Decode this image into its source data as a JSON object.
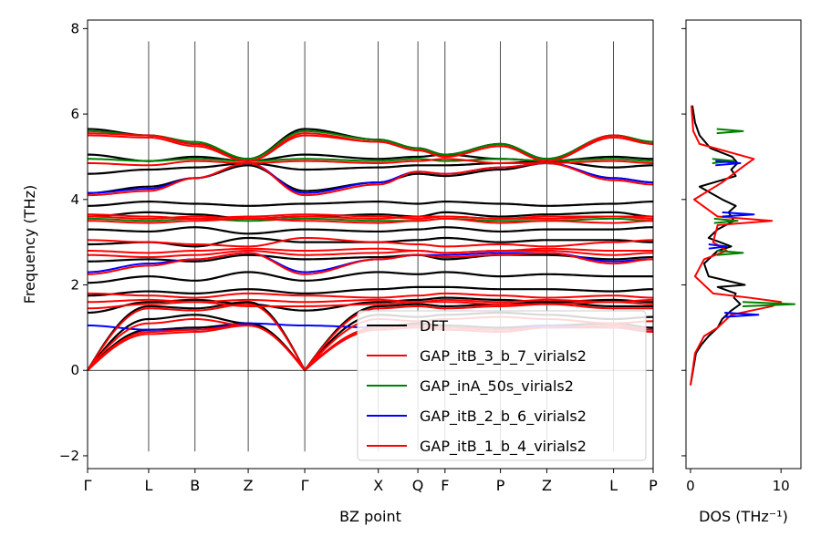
{
  "chart_data": [
    {
      "type": "line",
      "subtype": "phonon-band-structure",
      "title": "",
      "xlabel": "BZ point",
      "ylabel": "Frequency (THz)",
      "ylim": [
        -2.3,
        8.2
      ],
      "yticks": [
        -2,
        0,
        2,
        4,
        6,
        8
      ],
      "ytick_labels": [
        "−2",
        "0",
        "2",
        "4",
        "6",
        "8"
      ],
      "x_points": [
        "Γ",
        "L",
        "B",
        "Z",
        "Γ",
        "X",
        "Q",
        "F",
        "P",
        "Z",
        "L",
        "P"
      ],
      "x_positions": [
        0,
        0.108,
        0.19,
        0.284,
        0.384,
        0.514,
        0.584,
        0.632,
        0.73,
        0.812,
        0.93,
        1.0
      ],
      "vertical_lines_range": [
        -1.9,
        7.7
      ],
      "zero_line": true,
      "legend_position": "lower-right",
      "series": [
        {
          "name": "DFT",
          "color": "#000000",
          "levels_at_points": [
            [
              0,
              0.95,
              1.0,
              1.1,
              0,
              1.0,
              1.1,
              1.05,
              1.0,
              1.05,
              1.1,
              1.0
            ],
            [
              0,
              1.2,
              1.3,
              1.1,
              0,
              1.3,
              1.25,
              1.3,
              1.35,
              1.3,
              1.2,
              1.25
            ],
            [
              0,
              1.5,
              1.45,
              1.6,
              0,
              1.5,
              1.55,
              1.5,
              1.55,
              1.6,
              1.5,
              1.5
            ],
            [
              1.35,
              1.6,
              1.65,
              1.55,
              1.4,
              1.6,
              1.65,
              1.7,
              1.65,
              1.6,
              1.65,
              1.6
            ],
            [
              1.75,
              1.85,
              1.8,
              1.9,
              1.8,
              1.9,
              1.95,
              1.95,
              1.9,
              1.9,
              1.85,
              1.9
            ],
            [
              2.05,
              2.2,
              2.1,
              2.3,
              2.1,
              2.3,
              2.25,
              2.3,
              2.2,
              2.25,
              2.2,
              2.2
            ],
            [
              2.55,
              2.6,
              2.55,
              2.7,
              2.6,
              2.65,
              2.7,
              2.6,
              2.7,
              2.7,
              2.6,
              2.65
            ],
            [
              2.95,
              3.0,
              2.9,
              3.1,
              3.0,
              3.0,
              3.05,
              3.1,
              3.0,
              3.05,
              3.05,
              3.0
            ],
            [
              3.3,
              3.25,
              3.35,
              3.2,
              3.3,
              3.25,
              3.3,
              3.35,
              3.25,
              3.3,
              3.3,
              3.35
            ],
            [
              3.6,
              3.7,
              3.65,
              3.55,
              3.6,
              3.65,
              3.6,
              3.7,
              3.6,
              3.65,
              3.7,
              3.6
            ],
            [
              3.85,
              3.95,
              3.9,
              3.85,
              3.9,
              3.95,
              3.9,
              3.95,
              3.9,
              3.85,
              3.9,
              3.95
            ],
            [
              4.15,
              4.3,
              4.5,
              4.8,
              4.2,
              4.4,
              4.6,
              4.55,
              4.7,
              4.85,
              4.5,
              4.4
            ],
            [
              4.6,
              4.7,
              4.75,
              4.85,
              4.7,
              4.75,
              4.8,
              4.8,
              4.85,
              4.9,
              4.75,
              4.8
            ],
            [
              5.05,
              4.9,
              5.0,
              4.9,
              5.05,
              4.95,
              5.0,
              5.05,
              4.95,
              4.9,
              5.0,
              4.95
            ],
            [
              5.65,
              5.5,
              5.3,
              4.95,
              5.65,
              5.4,
              5.2,
              5.05,
              5.3,
              4.95,
              5.5,
              5.35
            ]
          ]
        },
        {
          "name": "GAP_itB_3_b_7_virials2",
          "color": "#ff0000",
          "levels_at_points": [
            [
              0,
              0.85,
              0.9,
              1.05,
              0,
              0.95,
              1.0,
              0.95,
              0.9,
              1.0,
              1.0,
              0.9
            ],
            [
              0,
              1.1,
              1.2,
              1.05,
              0,
              1.2,
              1.15,
              1.2,
              1.25,
              1.2,
              1.1,
              1.15
            ],
            [
              0,
              1.45,
              1.4,
              1.55,
              0,
              1.45,
              1.5,
              1.45,
              1.5,
              1.55,
              1.45,
              1.45
            ],
            [
              1.45,
              1.55,
              1.6,
              1.5,
              1.5,
              1.55,
              1.6,
              1.6,
              1.55,
              1.55,
              1.6,
              1.55
            ],
            [
              1.8,
              1.75,
              1.7,
              1.8,
              1.75,
              1.7,
              1.75,
              1.8,
              1.75,
              1.7,
              1.75,
              1.7
            ],
            [
              2.25,
              2.45,
              2.6,
              2.75,
              2.25,
              2.6,
              2.7,
              2.65,
              2.7,
              2.75,
              2.5,
              2.6
            ],
            [
              2.8,
              2.75,
              2.8,
              2.85,
              2.8,
              2.85,
              2.8,
              2.75,
              2.8,
              2.85,
              2.8,
              2.8
            ],
            [
              3.05,
              3.0,
              2.95,
              2.9,
              3.1,
              3.0,
              2.95,
              2.9,
              2.95,
              2.9,
              3.0,
              3.05
            ],
            [
              3.5,
              3.45,
              3.5,
              3.55,
              3.5,
              3.45,
              3.5,
              3.55,
              3.45,
              3.5,
              3.45,
              3.5
            ],
            [
              3.65,
              3.6,
              3.55,
              3.6,
              3.65,
              3.6,
              3.55,
              3.6,
              3.55,
              3.6,
              3.6,
              3.6
            ],
            [
              4.1,
              4.2,
              4.5,
              4.85,
              4.1,
              4.35,
              4.65,
              4.6,
              4.75,
              4.85,
              4.45,
              4.35
            ],
            [
              4.85,
              4.8,
              4.9,
              4.85,
              4.9,
              4.85,
              4.9,
              4.95,
              4.85,
              4.85,
              4.9,
              4.85
            ],
            [
              5.55,
              5.5,
              5.3,
              4.9,
              5.55,
              5.35,
              5.15,
              5.0,
              5.25,
              4.9,
              5.5,
              5.3
            ]
          ]
        },
        {
          "name": "GAP_inA_50s_virials2",
          "color": "#008000",
          "levels_at_points": [
            [
              3.55,
              3.5,
              3.55,
              3.5,
              3.55,
              3.5,
              3.5,
              3.55,
              3.5,
              3.5,
              3.55,
              3.5
            ],
            [
              4.95,
              4.9,
              4.95,
              4.9,
              4.95,
              4.9,
              4.95,
              4.9,
              4.95,
              4.9,
              4.95,
              4.9
            ],
            [
              5.6,
              5.5,
              5.35,
              4.95,
              5.6,
              5.4,
              5.2,
              5.05,
              5.3,
              4.95,
              5.5,
              5.35
            ]
          ]
        },
        {
          "name": "GAP_itB_2_b_6_virials2",
          "color": "#0000ff",
          "levels_at_points": [
            [
              1.05,
              0.95,
              0.95,
              1.1,
              1.05,
              1.0,
              1.05,
              1.0,
              0.95,
              1.05,
              1.0,
              0.95
            ],
            [
              2.3,
              2.5,
              2.6,
              2.75,
              2.3,
              2.6,
              2.7,
              2.7,
              2.75,
              2.75,
              2.55,
              2.6
            ],
            [
              4.15,
              4.25,
              4.5,
              4.85,
              4.15,
              4.4,
              4.65,
              4.6,
              4.75,
              4.85,
              4.5,
              4.4
            ]
          ]
        },
        {
          "name": "GAP_itB_1_b_4_virials2",
          "color": "#ff0000",
          "levels_at_points": [
            [
              0,
              0.9,
              0.95,
              1.05,
              0,
              1.0,
              1.05,
              1.0,
              0.95,
              1.0,
              1.05,
              0.95
            ],
            [
              1.6,
              1.65,
              1.6,
              1.65,
              1.6,
              1.65,
              1.6,
              1.65,
              1.6,
              1.65,
              1.6,
              1.65
            ],
            [
              2.7,
              2.65,
              2.7,
              2.8,
              2.7,
              2.75,
              2.8,
              2.75,
              2.8,
              2.8,
              2.7,
              2.75
            ],
            [
              3.6,
              3.55,
              3.6,
              3.55,
              3.6,
              3.55,
              3.6,
              3.6,
              3.55,
              3.55,
              3.6,
              3.55
            ],
            [
              5.5,
              5.45,
              5.25,
              4.9,
              5.5,
              5.35,
              5.15,
              5.0,
              5.25,
              4.9,
              5.45,
              5.3
            ]
          ]
        }
      ]
    },
    {
      "type": "line",
      "subtype": "density-of-states",
      "xlabel": "DOS (THz⁻¹)",
      "ylabel": "",
      "xlim": [
        -0.5,
        12.2
      ],
      "xticks": [
        0,
        10
      ],
      "xtick_labels": [
        "0",
        "10"
      ],
      "ylim": [
        -2.3,
        8.2
      ],
      "series": [
        {
          "name": "DFT",
          "color": "#000000",
          "y": [
            -0.35,
            0.4,
            0.6,
            0.8,
            1.0,
            1.2,
            1.4,
            1.55,
            1.7,
            1.8,
            1.95,
            2.0,
            2.2,
            2.5,
            2.8,
            2.9,
            3.1,
            3.3,
            3.5,
            3.7,
            3.85,
            4.0,
            4.3,
            4.55,
            4.7,
            4.85,
            5.0,
            5.2,
            5.5,
            5.8,
            6.2
          ],
          "x": [
            0,
            0.6,
            1.2,
            2.0,
            3.0,
            3.5,
            4.5,
            5.5,
            4.8,
            5.0,
            3.0,
            6.0,
            2.0,
            1.5,
            3.0,
            4.5,
            2.0,
            3.0,
            4.8,
            4.2,
            5.0,
            3.5,
            1.0,
            5.0,
            4.5,
            5.2,
            4.6,
            2.2,
            1.0,
            0.5,
            0.2
          ]
        },
        {
          "name": "GAP_itB_3_b_7_virials2",
          "color": "#ff0000",
          "y": [
            -0.35,
            0.4,
            0.8,
            1.0,
            1.3,
            1.5,
            1.6,
            1.7,
            1.8,
            2.2,
            2.6,
            2.8,
            3.0,
            3.4,
            3.5,
            3.6,
            4.0,
            4.4,
            4.8,
            4.95,
            5.3,
            5.6,
            6.2
          ],
          "x": [
            0,
            0.5,
            1.5,
            3.0,
            4.5,
            9.0,
            10.0,
            6.5,
            2.5,
            0.5,
            1.5,
            4.0,
            2.5,
            3.0,
            9.0,
            3.0,
            0.4,
            3.5,
            6.0,
            7.0,
            1.0,
            0.3,
            0.1
          ]
        },
        {
          "name": "GAP_inA_50s_virials2",
          "color": "#008000",
          "y": [
            1.55,
            2.75,
            3.5,
            4.9,
            5.6
          ],
          "x": [
            11.5,
            5.8,
            5.2,
            4.8,
            5.8
          ]
        },
        {
          "name": "GAP_itB_2_b_6_virials2",
          "color": "#0000ff",
          "y": [
            1.3,
            2.9,
            3.65,
            4.85
          ],
          "x": [
            7.5,
            4.0,
            7.0,
            5.5
          ]
        }
      ]
    }
  ]
}
